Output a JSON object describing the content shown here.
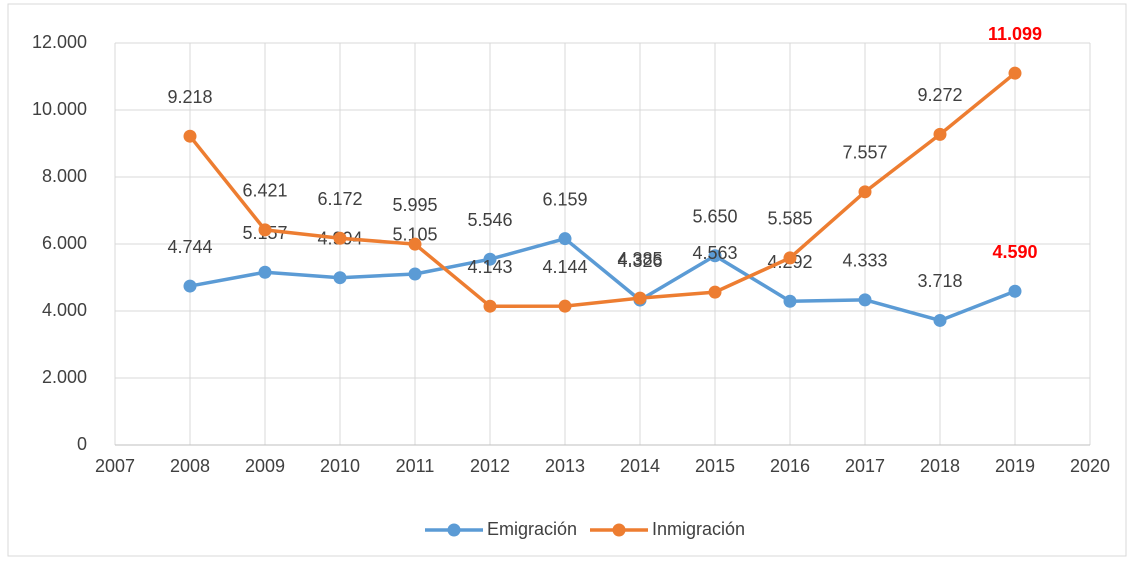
{
  "chart_data": {
    "type": "line",
    "x": [
      2008,
      2009,
      2010,
      2011,
      2012,
      2013,
      2014,
      2015,
      2016,
      2017,
      2018,
      2019
    ],
    "series": [
      {
        "name": "Emigración",
        "color": "#5b9bd5",
        "values": [
          4744,
          5157,
          4994,
          5105,
          5546,
          6159,
          4326,
          5650,
          4292,
          4333,
          3718,
          4590
        ],
        "value_labels": [
          "4.744",
          "5.157",
          "4.994",
          "5.105",
          "5.546",
          "6.159",
          "4.326",
          "5.650",
          "4.292",
          "4.333",
          "3.718",
          "4.590"
        ]
      },
      {
        "name": "Inmigración",
        "color": "#ed7d31",
        "values": [
          9218,
          6421,
          6172,
          5995,
          4143,
          4144,
          4385,
          4563,
          5585,
          7557,
          9272,
          11099
        ],
        "value_labels": [
          "9.218",
          "6.421",
          "6.172",
          "5.995",
          "4.143",
          "4.144",
          "4.385",
          "4.563",
          "5.585",
          "7.557",
          "9.272",
          "11.099"
        ]
      }
    ],
    "highlight_color": "#ff0000",
    "xlim": [
      2007,
      2020
    ],
    "xticks": [
      2007,
      2008,
      2009,
      2010,
      2011,
      2012,
      2013,
      2014,
      2015,
      2016,
      2017,
      2018,
      2019,
      2020
    ],
    "ylim": [
      0,
      12000
    ],
    "yticks": [
      0,
      {
        "value": 2000,
        "label": "2.000"
      },
      {
        "value": 4000,
        "label": "4.000"
      },
      {
        "value": 6000,
        "label": "6.000"
      },
      {
        "value": 8000,
        "label": "8.000"
      },
      {
        "value": 10000,
        "label": "10.000"
      },
      {
        "value": 12000,
        "label": "12.000"
      }
    ],
    "grid": true,
    "legend": "bottom"
  }
}
